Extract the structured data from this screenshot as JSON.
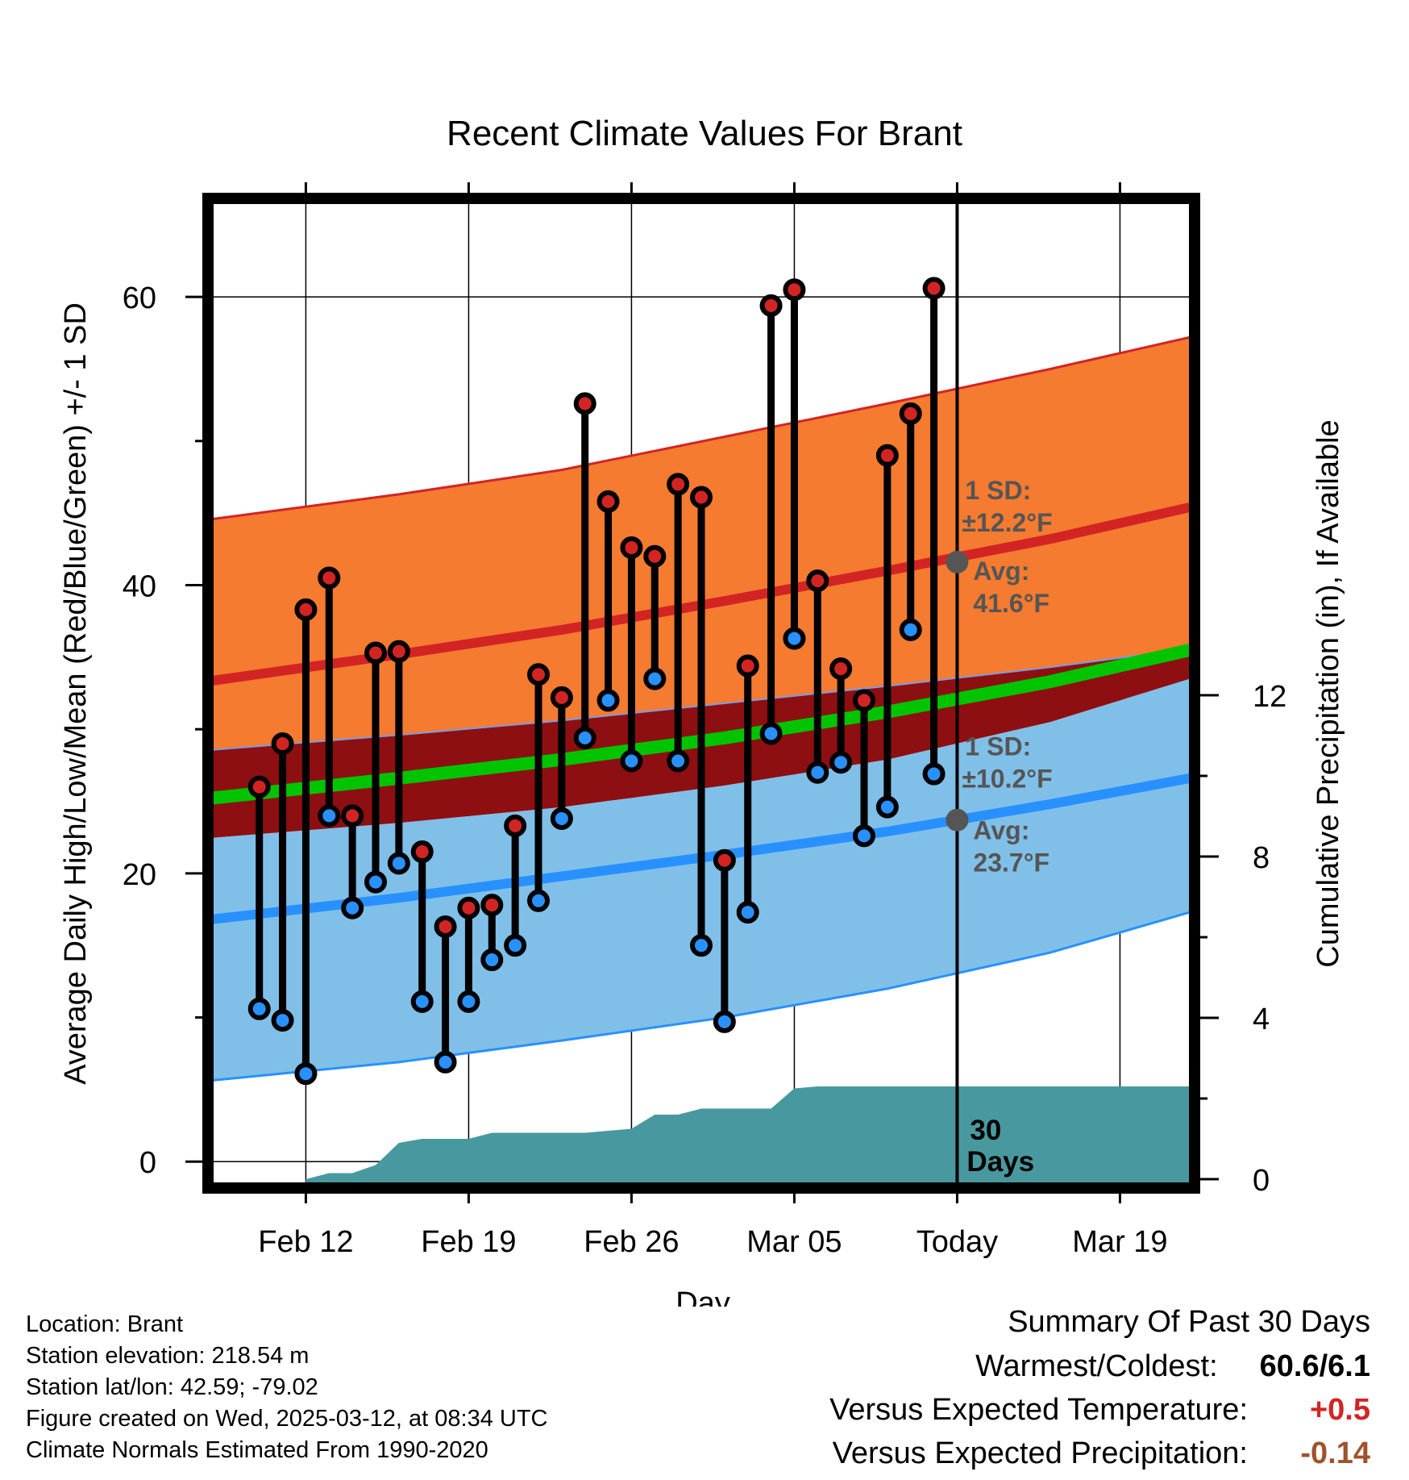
{
  "chart_data": {
    "type": "line",
    "title": "Recent Climate Values For Brant",
    "xlabel": "Day",
    "ylabel": "Average Daily High/Low/Mean (Red/Blue/Green) +/- 1 SD",
    "y2label": "Cumulative Precipitation (in), If Available",
    "ylim": [
      -1.5,
      66.5
    ],
    "y2lim": [
      -0.1,
      24.2
    ],
    "x_range": [
      "2025-02-08",
      "2025-03-22"
    ],
    "y_ticks": [
      0,
      20,
      40,
      60
    ],
    "y2_ticks": [
      0,
      4,
      8,
      12
    ],
    "x_tick_labels": [
      {
        "date": "2025-02-12",
        "label": "Feb 12"
      },
      {
        "date": "2025-02-19",
        "label": "Feb 19"
      },
      {
        "date": "2025-02-26",
        "label": "Feb 26"
      },
      {
        "date": "2025-03-05",
        "label": "Mar 05"
      },
      {
        "date": "2025-03-12",
        "label": "Today"
      },
      {
        "date": "2025-03-19",
        "label": "Mar 19"
      }
    ],
    "today": "2025-03-12",
    "grid": true,
    "normals": {
      "dates": [
        "2025-02-09",
        "2025-02-16",
        "2025-02-23",
        "2025-03-02",
        "2025-03-09",
        "2025-03-16",
        "2025-03-22"
      ],
      "high_mean": [
        33.6,
        35.2,
        36.9,
        38.9,
        41.0,
        43.2,
        45.4
      ],
      "high_upper": [
        44.8,
        46.3,
        48.0,
        50.3,
        52.6,
        55.0,
        57.2
      ],
      "high_lower": [
        28.7,
        29.6,
        30.6,
        31.8,
        33.0,
        34.3,
        35.6
      ],
      "mean_mean": [
        25.4,
        26.6,
        27.9,
        29.4,
        31.2,
        33.3,
        35.5
      ],
      "low_mean": [
        17.0,
        18.3,
        19.8,
        21.3,
        22.9,
        24.8,
        26.6
      ],
      "low_upper": [
        22.6,
        23.5,
        24.6,
        26.1,
        27.9,
        30.5,
        33.5
      ],
      "low_lower": [
        5.8,
        6.9,
        8.4,
        10.0,
        12.0,
        14.5,
        17.3
      ],
      "band_colors": {
        "high_band": "#F47B30",
        "high_band_edge": "#D32424",
        "high_mean_line": "#D32424",
        "overlap_band": "#8E0F12",
        "mean_line": "#00C400",
        "low_band": "#80C0E8",
        "low_band_edge": "#2891FF",
        "low_mean_line": "#2891FF"
      }
    },
    "series": [
      {
        "name": "High",
        "color": "#D32424",
        "dates": [
          "2025-02-10",
          "2025-02-11",
          "2025-02-12",
          "2025-02-13",
          "2025-02-14",
          "2025-02-15",
          "2025-02-16",
          "2025-02-17",
          "2025-02-18",
          "2025-02-19",
          "2025-02-20",
          "2025-02-21",
          "2025-02-22",
          "2025-02-23",
          "2025-02-24",
          "2025-02-25",
          "2025-02-26",
          "2025-02-27",
          "2025-02-28",
          "2025-03-01",
          "2025-03-02",
          "2025-03-03",
          "2025-03-04",
          "2025-03-05",
          "2025-03-06",
          "2025-03-07",
          "2025-03-08",
          "2025-03-09",
          "2025-03-10",
          "2025-03-11"
        ],
        "values": [
          26.0,
          29.0,
          38.3,
          40.5,
          24.0,
          35.3,
          35.4,
          21.5,
          16.3,
          17.6,
          17.8,
          23.3,
          33.8,
          32.2,
          52.6,
          45.8,
          42.6,
          42.0,
          47.0,
          46.1,
          20.9,
          34.4,
          59.4,
          60.5,
          40.3,
          34.2,
          32.0,
          49.0,
          51.9,
          60.6
        ]
      },
      {
        "name": "Low",
        "color": "#2891FF",
        "dates": [
          "2025-02-10",
          "2025-02-11",
          "2025-02-12",
          "2025-02-13",
          "2025-02-14",
          "2025-02-15",
          "2025-02-16",
          "2025-02-17",
          "2025-02-18",
          "2025-02-19",
          "2025-02-20",
          "2025-02-21",
          "2025-02-22",
          "2025-02-23",
          "2025-02-24",
          "2025-02-25",
          "2025-02-26",
          "2025-02-27",
          "2025-02-28",
          "2025-03-01",
          "2025-03-02",
          "2025-03-03",
          "2025-03-04",
          "2025-03-05",
          "2025-03-06",
          "2025-03-07",
          "2025-03-08",
          "2025-03-09",
          "2025-03-10",
          "2025-03-11"
        ],
        "values": [
          10.6,
          9.8,
          6.1,
          24.0,
          17.6,
          19.4,
          20.7,
          11.1,
          6.9,
          11.1,
          14.0,
          15.0,
          18.1,
          23.8,
          29.4,
          32.0,
          27.8,
          33.5,
          27.8,
          15.0,
          9.7,
          17.3,
          29.7,
          36.3,
          27.0,
          27.7,
          22.6,
          24.6,
          36.9,
          26.9
        ]
      }
    ],
    "precip": {
      "color": "#48999F",
      "dates": [
        "2025-02-12",
        "2025-02-13",
        "2025-02-14",
        "2025-02-15",
        "2025-02-16",
        "2025-02-17",
        "2025-02-18",
        "2025-02-19",
        "2025-02-20",
        "2025-02-21",
        "2025-02-22",
        "2025-02-23",
        "2025-02-24",
        "2025-02-25",
        "2025-02-26",
        "2025-02-27",
        "2025-02-28",
        "2025-03-01",
        "2025-03-02",
        "2025-03-03",
        "2025-03-04",
        "2025-03-05",
        "2025-03-06",
        "2025-03-07",
        "2025-03-08",
        "2025-03-09",
        "2025-03-10",
        "2025-03-11",
        "2025-03-12",
        "2025-03-22"
      ],
      "values": [
        0.0,
        0.15,
        0.15,
        0.35,
        0.9,
        1.0,
        1.0,
        1.0,
        1.15,
        1.15,
        1.15,
        1.15,
        1.15,
        1.2,
        1.25,
        1.6,
        1.6,
        1.75,
        1.75,
        1.75,
        1.75,
        2.25,
        2.3,
        2.3,
        2.3,
        2.3,
        2.3,
        2.3,
        2.3,
        2.3
      ]
    },
    "annotations": {
      "high": {
        "sd_label": "1 SD:",
        "sd_value": "±12.2°F",
        "avg_label": "Avg:",
        "avg_value": "41.6°F",
        "today_avg": 41.6
      },
      "low": {
        "sd_label": "1 SD:",
        "sd_value": "±10.2°F",
        "avg_label": "Avg:",
        "avg_value": "23.7°F",
        "today_avg": 23.7
      },
      "window": [
        "30",
        "Days"
      ]
    }
  },
  "info": {
    "location": "Location: Brant",
    "elevation": "Station elevation: 218.54 m",
    "latlon": "Station lat/lon: 42.59; -79.02",
    "created": "Figure created on Wed, 2025-03-12, at 08:34 UTC",
    "normals": "Climate Normals Estimated From 1990-2020"
  },
  "summary": {
    "title": "Summary Of Past 30 Days",
    "rows": [
      {
        "label": "Warmest/Coldest:",
        "value": "60.6/6.1",
        "color": "#000000"
      },
      {
        "label": "Versus Expected Temperature:",
        "value": "+0.5",
        "color": "#D32424"
      },
      {
        "label": "Versus Expected Precipitation:",
        "value": "-0.14",
        "color": "#A0522D"
      }
    ]
  }
}
